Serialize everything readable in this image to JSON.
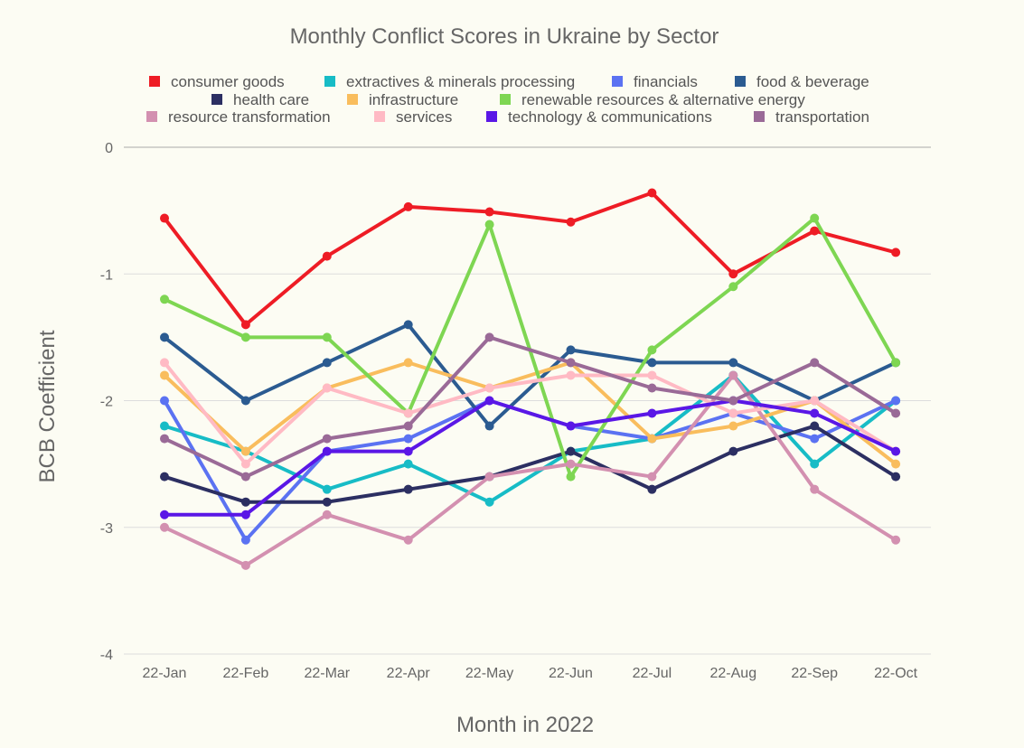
{
  "chart_data": {
    "type": "line",
    "title": "Monthly Conflict Scores in Ukraine by Sector",
    "xlabel": "Month in 2022",
    "ylabel": "BCB Coefficient",
    "categories": [
      "22-Jan",
      "22-Feb",
      "22-Mar",
      "22-Apr",
      "22-May",
      "22-Jun",
      "22-Jul",
      "22-Aug",
      "22-Sep",
      "22-Oct"
    ],
    "ylim": [
      -4,
      0
    ],
    "yticks": [
      0,
      -1,
      -2,
      -3,
      -4
    ],
    "ytick_labels": [
      "0",
      "-1",
      "-2",
      "-3",
      "-4"
    ],
    "grid": true,
    "legend_position": "top",
    "series": [
      {
        "name": "consumer goods",
        "color": "#ee1c25",
        "values": [
          -0.56,
          -1.4,
          -0.86,
          -0.47,
          -0.51,
          -0.59,
          -0.36,
          -1.0,
          -0.66,
          -0.83
        ]
      },
      {
        "name": "extractives & minerals processing",
        "color": "#17bcc6",
        "values": [
          -2.2,
          -2.4,
          -2.7,
          -2.5,
          -2.8,
          -2.4,
          -2.3,
          -1.8,
          -2.5,
          -2.0
        ]
      },
      {
        "name": "financials",
        "color": "#5b72f2",
        "values": [
          -2.0,
          -3.1,
          -2.4,
          -2.3,
          -2.0,
          -2.2,
          -2.3,
          -2.1,
          -2.3,
          -2.0
        ]
      },
      {
        "name": "food & beverage",
        "color": "#2b5b91",
        "values": [
          -1.5,
          -2.0,
          -1.7,
          -1.4,
          -2.2,
          -1.6,
          -1.7,
          -1.7,
          -2.0,
          -1.7
        ]
      },
      {
        "name": "health care",
        "color": "#2c2f62",
        "values": [
          -2.6,
          -2.8,
          -2.8,
          -2.7,
          -2.6,
          -2.4,
          -2.7,
          -2.4,
          -2.2,
          -2.6
        ]
      },
      {
        "name": "infrastructure",
        "color": "#f9bd5d",
        "values": [
          -1.8,
          -2.4,
          -1.9,
          -1.7,
          -1.9,
          -1.7,
          -2.3,
          -2.2,
          -2.0,
          -2.5
        ]
      },
      {
        "name": "renewable resources & alternative energy",
        "color": "#7ed652",
        "values": [
          -1.2,
          -1.5,
          -1.5,
          -2.1,
          -0.61,
          -2.6,
          -1.6,
          -1.1,
          -0.56,
          -1.7
        ]
      },
      {
        "name": "resource transformation",
        "color": "#d390b0",
        "values": [
          -3.0,
          -3.3,
          -2.9,
          -3.1,
          -2.6,
          -2.5,
          -2.6,
          -1.8,
          -2.7,
          -3.1
        ]
      },
      {
        "name": "services",
        "color": "#ffbac4",
        "values": [
          -1.7,
          -2.5,
          -1.9,
          -2.1,
          -1.9,
          -1.8,
          -1.8,
          -2.1,
          -2.0,
          -2.4
        ]
      },
      {
        "name": "technology & communications",
        "color": "#5a17e6",
        "values": [
          -2.9,
          -2.9,
          -2.4,
          -2.4,
          -2.0,
          -2.2,
          -2.1,
          -2.0,
          -2.1,
          -2.4
        ]
      },
      {
        "name": "transportation",
        "color": "#9a6a97",
        "values": [
          -2.3,
          -2.6,
          -2.3,
          -2.2,
          -1.5,
          -1.7,
          -1.9,
          -2.0,
          -1.7,
          -2.1
        ]
      }
    ]
  }
}
